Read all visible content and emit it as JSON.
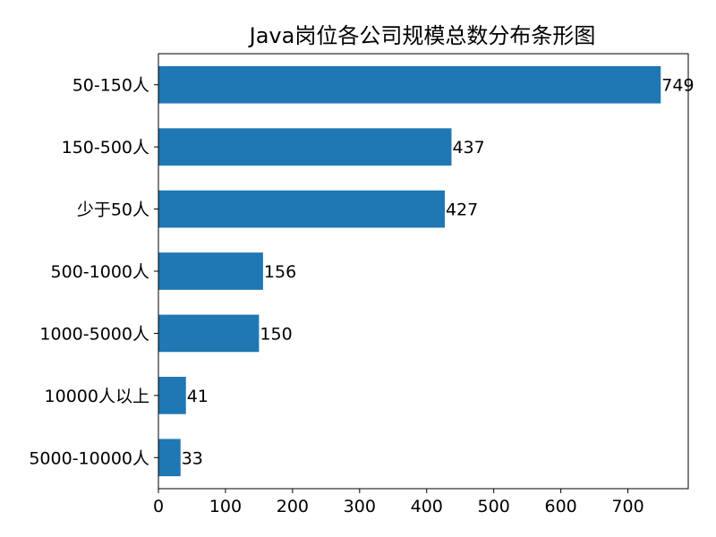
{
  "chart_data": {
    "type": "bar",
    "orientation": "horizontal",
    "title": "Java岗位各公司规模总数分布条形图",
    "xlabel": "",
    "ylabel": "",
    "xlim": [
      0,
      790
    ],
    "x_ticks": [
      0,
      100,
      200,
      300,
      400,
      500,
      600,
      700
    ],
    "categories": [
      "50-150人",
      "150-500人",
      "少于50人",
      "500-1000人",
      "1000-5000人",
      "10000人以上",
      "5000-10000人"
    ],
    "values": [
      749,
      437,
      427,
      156,
      150,
      41,
      33
    ],
    "colors": {
      "bar": "#1f77b4",
      "axis": "#000000",
      "background": "#ffffff"
    },
    "grid": false,
    "legend": "none"
  }
}
